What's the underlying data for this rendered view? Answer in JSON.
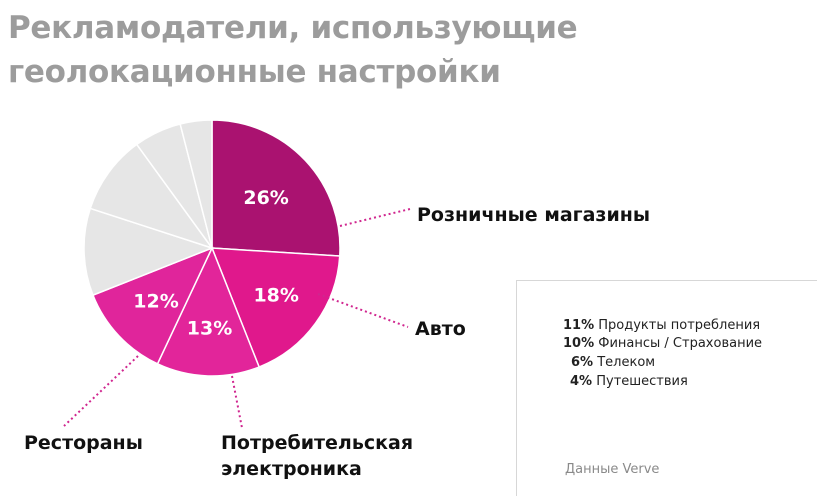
{
  "title_line1": "Рекламодатели, использующие",
  "title_line2": "геолокационные настройки",
  "chart_data": {
    "type": "pie",
    "title": "Рекламодатели, использующие геолокационные настройки",
    "slices": [
      {
        "label": "Розничные магазины",
        "value": 26,
        "display": "26%",
        "color": "#aa1270"
      },
      {
        "label": "Авто",
        "value": 18,
        "display": "18%",
        "color": "#e0188c"
      },
      {
        "label": "Потребительская электроника",
        "value": 13,
        "display": "13%",
        "color": "#e2259a"
      },
      {
        "label": "Рестораны",
        "value": 12,
        "display": "12%",
        "color": "#e0259b"
      },
      {
        "label": "Продукты потребления",
        "value": 11,
        "display": "11%",
        "color": "#e6e6e6"
      },
      {
        "label": "Финансы / Страхование",
        "value": 10,
        "display": "10%",
        "color": "#e6e6e6"
      },
      {
        "label": "Телеком",
        "value": 6,
        "display": "6%",
        "color": "#e6e6e6"
      },
      {
        "label": "Путешествия",
        "value": 4,
        "display": "4%",
        "color": "#e6e6e6"
      }
    ]
  },
  "callouts": {
    "retail": "Розничные магазины",
    "auto": "Авто",
    "restaurants": "Рестораны",
    "electronics_line1": "Потребительская",
    "electronics_line2": "электроника"
  },
  "legend": [
    {
      "pct": "11%",
      "label": "Продукты потребления"
    },
    {
      "pct": "10%",
      "label": "Финансы / Страхование"
    },
    {
      "pct": "6%",
      "label": "Телеком"
    },
    {
      "pct": "4%",
      "label": "Путешествия"
    }
  ],
  "source": "Данные Verve",
  "colors": {
    "leader": "#d0268f",
    "grey_slice": "#e6e6e6",
    "slice_border": "#ffffff"
  }
}
